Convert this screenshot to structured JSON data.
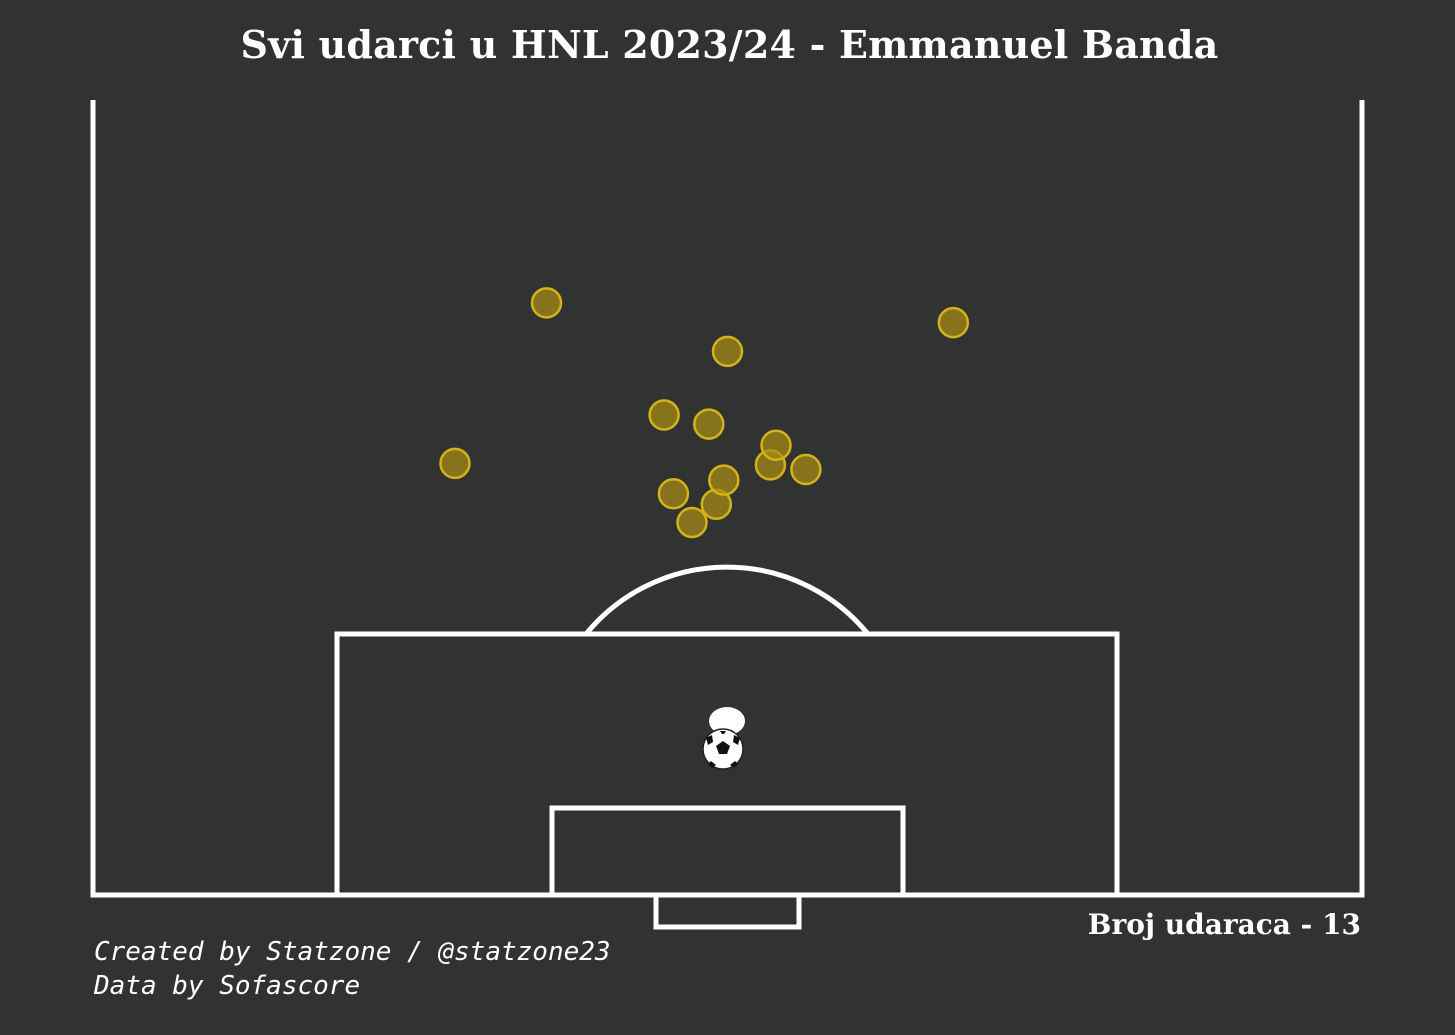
{
  "title": "Svi udarci u HNL 2023/24 - Emmanuel Banda",
  "shot_count_label": "Broj udaraca - 13",
  "credits": {
    "line1": "Created by Statzone / @statzone23",
    "line2": "Data by Sofascore"
  },
  "colors": {
    "background": "#313332",
    "lines": "#ffffff",
    "shot_fill": "#a88c13",
    "shot_edge": "#d4b21a"
  },
  "chart_data": {
    "type": "scatter",
    "title": "Svi udarci u HNL 2023/24 - Emmanuel Banda",
    "xlabel": "",
    "ylabel": "",
    "xlim": [
      0,
      68
    ],
    "ylim": [
      52.5,
      105
    ],
    "grid": false,
    "points": [
      {
        "x": 32.1,
        "y": 80.4
      },
      {
        "x": 33.4,
        "y": 79.2
      },
      {
        "x": 31.1,
        "y": 78.5
      },
      {
        "x": 33.8,
        "y": 77.6
      },
      {
        "x": 19.4,
        "y": 76.5
      },
      {
        "x": 36.3,
        "y": 76.6
      },
      {
        "x": 38.2,
        "y": 76.9
      },
      {
        "x": 36.6,
        "y": 75.3
      },
      {
        "x": 33.0,
        "y": 73.9
      },
      {
        "x": 30.6,
        "y": 73.3
      },
      {
        "x": 24.3,
        "y": 65.9
      },
      {
        "x": 46.1,
        "y": 67.2
      },
      {
        "x": 34.0,
        "y": 69.1
      }
    ]
  }
}
